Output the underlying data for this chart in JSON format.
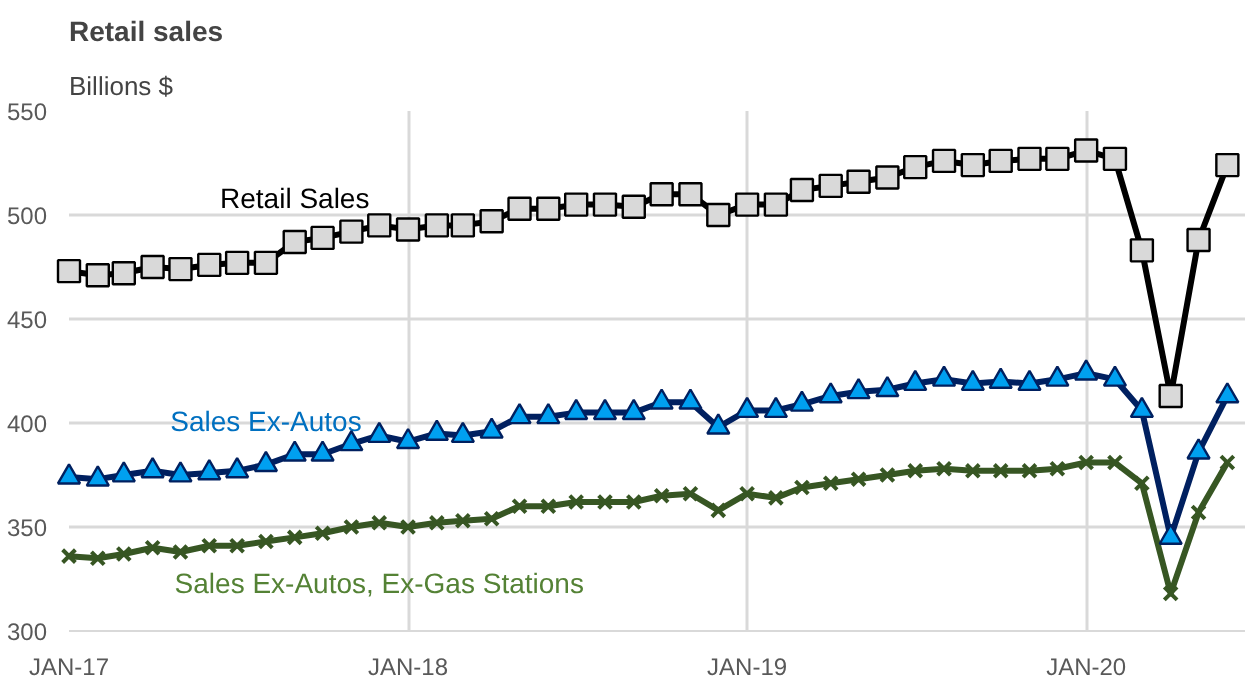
{
  "chart_data": {
    "type": "line",
    "title": "Retail sales",
    "ylabel": "Billions $",
    "x": [
      "2017-01-01",
      "2017-02-01",
      "2017-03-01",
      "2017-04-01",
      "2017-05-01",
      "2017-06-01",
      "2017-07-01",
      "2017-08-01",
      "2017-09-01",
      "2017-10-01",
      "2017-11-01",
      "2017-12-01",
      "2018-01-01",
      "2018-02-01",
      "2018-03-01",
      "2018-04-01",
      "2018-05-01",
      "2018-06-01",
      "2018-07-01",
      "2018-08-01",
      "2018-09-01",
      "2018-10-01",
      "2018-11-01",
      "2018-12-01",
      "2019-01-01",
      "2019-02-01",
      "2019-03-01",
      "2019-04-01",
      "2019-05-01",
      "2019-06-01",
      "2019-07-01",
      "2019-08-01",
      "2019-09-01",
      "2019-10-01",
      "2019-11-01",
      "2019-12-01",
      "2020-01-01",
      "2020-02-01",
      "2020-03-01",
      "2020-04-01",
      "2020-05-01",
      "2020-06-01"
    ],
    "series": [
      {
        "name": "Retail Sales",
        "color": "#000000",
        "marker": "square",
        "values": [
          473,
          471,
          472,
          475,
          474,
          476,
          477,
          477,
          487,
          489,
          492,
          495,
          493,
          495,
          495,
          497,
          503,
          503,
          505,
          505,
          504,
          510,
          510,
          500,
          505,
          505,
          512,
          514,
          516,
          518,
          523,
          526,
          524,
          526,
          527,
          527,
          531,
          527,
          483,
          413,
          488,
          524
        ]
      },
      {
        "name": "Sales Ex-Autos",
        "color": "#002060",
        "marker": "triangle",
        "values": [
          374,
          373,
          375,
          377,
          375,
          376,
          377,
          380,
          385,
          385,
          390,
          394,
          391,
          395,
          394,
          396,
          403,
          403,
          405,
          405,
          405,
          410,
          410,
          398,
          406,
          406,
          409,
          413,
          415,
          416,
          419,
          421,
          419,
          420,
          419,
          421,
          424,
          421,
          406,
          345,
          386,
          413
        ]
      },
      {
        "name": "Sales Ex-Autos, Ex-Gas Stations",
        "color": "#375623",
        "marker": "cross",
        "values": [
          336,
          335,
          337,
          340,
          338,
          341,
          341,
          343,
          345,
          347,
          350,
          352,
          350,
          352,
          353,
          354,
          360,
          360,
          362,
          362,
          362,
          365,
          366,
          358,
          366,
          364,
          369,
          371,
          373,
          375,
          377,
          378,
          377,
          377,
          377,
          378,
          381,
          381,
          371,
          318,
          357,
          381
        ]
      }
    ],
    "xlim": [
      "2017-01-01",
      "2020-06-20"
    ],
    "xticks": [
      {
        "value": "2017-01-01",
        "label": "JAN-17"
      },
      {
        "value": "2018-01-01",
        "label": "JAN-18"
      },
      {
        "value": "2019-01-01",
        "label": "JAN-19"
      },
      {
        "value": "2020-01-01",
        "label": "JAN-20"
      }
    ],
    "ylim": [
      300,
      550
    ],
    "yticks": [
      300,
      350,
      400,
      450,
      500,
      550
    ],
    "grid": true,
    "legend": false
  }
}
